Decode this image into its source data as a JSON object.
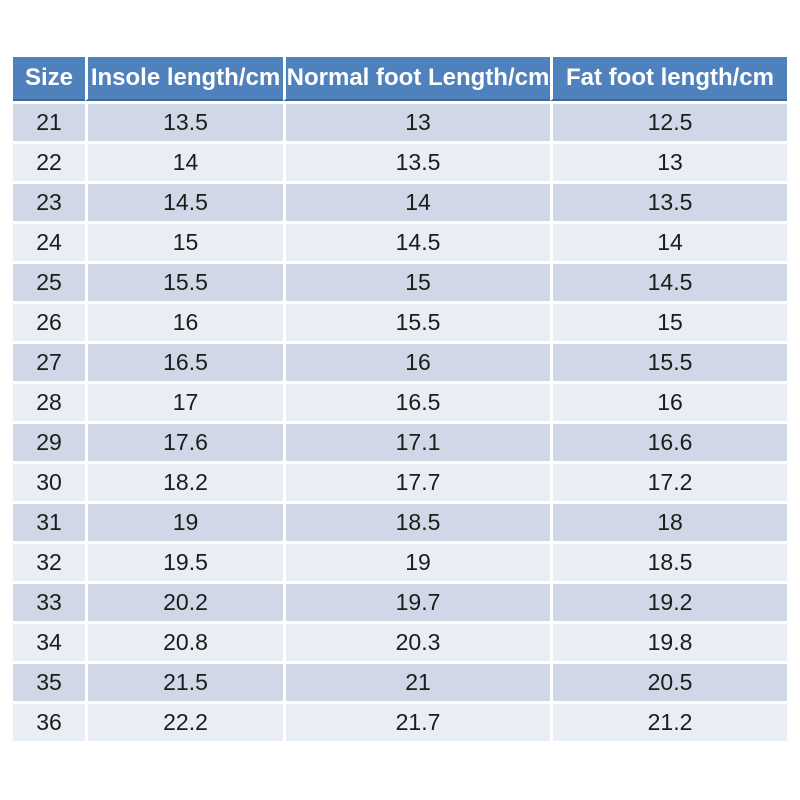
{
  "chart_data": {
    "type": "table",
    "columns": [
      "Size",
      "Insole length/cm",
      "Normal foot Length/cm",
      "Fat foot length/cm"
    ],
    "rows": [
      [
        21,
        13.5,
        13,
        12.5
      ],
      [
        22,
        14,
        13.5,
        13
      ],
      [
        23,
        14.5,
        14,
        13.5
      ],
      [
        24,
        15,
        14.5,
        14
      ],
      [
        25,
        15.5,
        15,
        14.5
      ],
      [
        26,
        16,
        15.5,
        15
      ],
      [
        27,
        16.5,
        16,
        15.5
      ],
      [
        28,
        17,
        16.5,
        16
      ],
      [
        29,
        17.6,
        17.1,
        16.6
      ],
      [
        30,
        18.2,
        17.7,
        17.2
      ],
      [
        31,
        19,
        18.5,
        18
      ],
      [
        32,
        19.5,
        19,
        18.5
      ],
      [
        33,
        20.2,
        19.7,
        19.2
      ],
      [
        34,
        20.8,
        20.3,
        19.8
      ],
      [
        35,
        21.5,
        21,
        20.5
      ],
      [
        36,
        22.2,
        21.7,
        21.2
      ]
    ],
    "colors": {
      "header_bg": "#4f81bd",
      "header_text": "#ffffff",
      "header_underline": "#3f6896",
      "row_odd": "#d0d8e8",
      "row_even": "#e9edf4",
      "cell_text": "#1c1c1c"
    }
  }
}
